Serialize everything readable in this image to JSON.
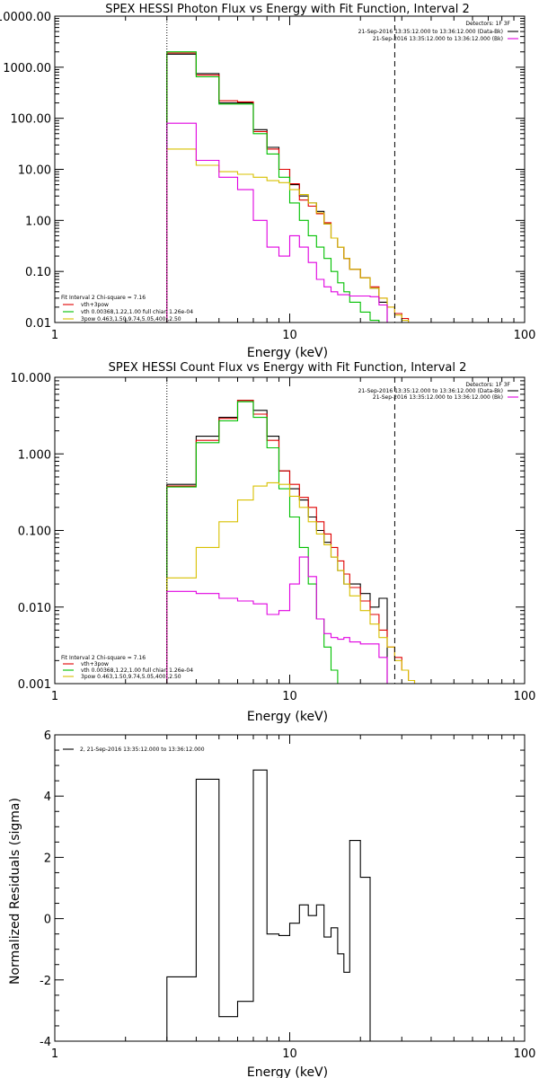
{
  "colors": {
    "data": "#000000",
    "total": "#e00000",
    "vth": "#00c000",
    "3pow": "#d8c000",
    "bk": "#e000e0"
  },
  "chart_data": [
    {
      "type": "line",
      "title": "SPEX HESSI Photon Flux vs Energy with Fit Function, Interval 2",
      "xlabel": "Energy (keV)",
      "ylabel": "",
      "xscale": "log",
      "yscale": "log",
      "xlim": [
        1,
        100
      ],
      "ylim": [
        0.01,
        10000
      ],
      "xticks": [
        1,
        10,
        100
      ],
      "xtick_labels": [
        "1",
        "10",
        "100"
      ],
      "yticks": [
        0.01,
        0.1,
        1,
        10,
        100,
        1000,
        10000
      ],
      "ytick_labels": [
        "0.01",
        "0.10",
        "1.00",
        "10.00",
        "100.00",
        "1000.00",
        "10000.00"
      ],
      "vlines": [
        {
          "x": 3,
          "style": "dotted"
        },
        {
          "x": 28,
          "style": "dashed"
        }
      ],
      "info": [
        "Detectors: 1F 3F",
        "21-Sep-2016 13:35:12.000 to 13:36:12.000 (Data-Bk)",
        "21-Sep-2016 13:35:12.000 to 13:36:12.000 (Bk)"
      ],
      "fit_text": [
        "Fit Interval 2   Chi-square = 7.16",
        "vth+3pow",
        "vth 0.00368,1.22,1.00  full chian 1.26e-04",
        "3pow 0.463,1.50,9.74,5.05,400.,2.50"
      ],
      "edges": [
        3,
        4,
        5,
        6,
        7,
        8,
        9,
        10,
        11,
        12,
        13,
        14,
        15,
        16,
        17,
        18,
        20,
        22,
        24,
        26,
        28,
        30,
        32,
        34,
        36
      ],
      "series": [
        {
          "name": "21-Sep-2016 13:35:12.000 to 13:36:12.000 (Data-Bk)",
          "color": "#000000",
          "values": [
            1800,
            750,
            200,
            200,
            60,
            27,
            10,
            5,
            3,
            2.2,
            1.5,
            0.85,
            0.45,
            0.3,
            0.18,
            0.11,
            0.075,
            0.047,
            0.025,
            null,
            null,
            null,
            null,
            null
          ]
        },
        {
          "name": "vth+3pow",
          "color": "#e00000",
          "values": [
            1900,
            700,
            220,
            210,
            55,
            25,
            10,
            5.2,
            2.5,
            1.9,
            1.35,
            0.9,
            0.45,
            0.3,
            0.18,
            0.11,
            0.075,
            0.05,
            0.03,
            0.02,
            0.015,
            0.012,
            0.01,
            null
          ]
        },
        {
          "name": "vth",
          "color": "#00c000",
          "values": [
            2000,
            650,
            190,
            190,
            50,
            20,
            7,
            2.2,
            1,
            0.5,
            0.3,
            0.18,
            0.1,
            0.06,
            0.04,
            0.025,
            0.016,
            0.011,
            null,
            null,
            null,
            null,
            null,
            null
          ]
        },
        {
          "name": "3pow",
          "color": "#d8c000",
          "values": [
            25,
            12,
            9,
            8,
            7,
            6,
            5.5,
            4,
            3.2,
            2.2,
            1.4,
            0.85,
            0.45,
            0.3,
            0.18,
            0.11,
            0.075,
            0.047,
            0.03,
            0.02,
            0.014,
            0.011,
            null,
            null
          ]
        },
        {
          "name": "21-Sep-2016 13:35:12.000 to 13:36:12.000 (Bk)",
          "color": "#e000e0",
          "values": [
            80,
            15,
            7,
            4,
            1,
            0.3,
            0.2,
            0.5,
            0.3,
            0.15,
            0.07,
            0.05,
            0.04,
            0.035,
            0.035,
            0.033,
            0.033,
            0.032,
            0.022,
            null,
            null,
            null,
            null,
            null
          ]
        }
      ]
    },
    {
      "type": "line",
      "title": "SPEX HESSI Count Flux vs Energy with Fit Function, Interval 2",
      "xlabel": "Energy (keV)",
      "ylabel": "",
      "xscale": "log",
      "yscale": "log",
      "xlim": [
        1,
        100
      ],
      "ylim": [
        0.001,
        10
      ],
      "xticks": [
        1,
        10,
        100
      ],
      "xtick_labels": [
        "1",
        "10",
        "100"
      ],
      "yticks": [
        0.001,
        0.01,
        0.1,
        1,
        10
      ],
      "ytick_labels": [
        "0.001",
        "0.010",
        "0.100",
        "1.000",
        "10.000"
      ],
      "vlines": [
        {
          "x": 3,
          "style": "dotted"
        },
        {
          "x": 28,
          "style": "dashed"
        }
      ],
      "info": [
        "Detectors: 1F 3F",
        "21-Sep-2016 13:35:12.000 to 13:36:12.000 (Data-Bk)",
        "21-Sep-2016 13:35:12.000 to 13:36:12.000 (Bk)"
      ],
      "fit_text": [
        "Fit Interval 2   Chi-square = 7.16",
        "vth+3pow",
        "vth 0.00368,1.22,1.00  full chian 1.26e-04",
        "3pow 0.463,1.50,9.74,5.05,400.,2.50"
      ],
      "edges": [
        3,
        4,
        5,
        6,
        7,
        8,
        9,
        10,
        11,
        12,
        13,
        14,
        15,
        16,
        17,
        18,
        20,
        22,
        24,
        26,
        28,
        30,
        32,
        34,
        36
      ],
      "series": [
        {
          "name": "21-Sep-2016 13:35:12.000 to 13:36:12.000 (Data-Bk)",
          "color": "#000000",
          "values": [
            0.4,
            1.7,
            3,
            5,
            3.7,
            1.7,
            0.6,
            0.35,
            0.25,
            0.15,
            0.1,
            0.07,
            0.045,
            0.03,
            0.02,
            0.02,
            0.015,
            0.01,
            0.013,
            null,
            null,
            null,
            null,
            null
          ]
        },
        {
          "name": "vth+3pow",
          "color": "#e00000",
          "values": [
            0.38,
            1.5,
            2.9,
            5,
            3.3,
            1.5,
            0.6,
            0.4,
            0.27,
            0.2,
            0.13,
            0.09,
            0.06,
            0.04,
            0.027,
            0.018,
            0.012,
            0.008,
            0.005,
            0.003,
            0.0022,
            0.0015,
            0.0011,
            null
          ]
        },
        {
          "name": "vth",
          "color": "#00c000",
          "values": [
            0.37,
            1.4,
            2.7,
            4.8,
            3,
            1.2,
            0.35,
            0.15,
            0.06,
            0.02,
            0.007,
            0.003,
            0.0015,
            null,
            null,
            null,
            null,
            null,
            null,
            null,
            null,
            null,
            null,
            null
          ]
        },
        {
          "name": "3pow",
          "color": "#d8c000",
          "values": [
            0.024,
            0.06,
            0.13,
            0.25,
            0.38,
            0.42,
            0.4,
            0.28,
            0.2,
            0.13,
            0.09,
            0.065,
            0.045,
            0.03,
            0.02,
            0.014,
            0.009,
            0.006,
            0.004,
            0.003,
            0.002,
            0.0015,
            0.0011,
            null
          ]
        },
        {
          "name": "21-Sep-2016 13:35:12.000 to 13:36:12.000 (Bk)",
          "color": "#e000e0",
          "values": [
            0.016,
            0.015,
            0.013,
            0.012,
            0.011,
            0.008,
            0.009,
            0.02,
            0.045,
            0.025,
            0.007,
            0.0045,
            0.004,
            0.0038,
            0.004,
            0.0035,
            0.0033,
            0.0033,
            0.0022,
            null,
            null,
            null,
            null,
            null
          ]
        }
      ]
    },
    {
      "type": "line",
      "title": "",
      "xlabel": "Energy (keV)",
      "ylabel": "Normalized Residuals (sigma)",
      "xscale": "log",
      "xlim": [
        1,
        100
      ],
      "ylim": [
        -4,
        6
      ],
      "xticks": [
        1,
        10,
        100
      ],
      "xtick_labels": [
        "1",
        "10",
        "100"
      ],
      "yticks": [
        -4,
        -2,
        0,
        2,
        4,
        6
      ],
      "ytick_labels": [
        "-4",
        "-2",
        "0",
        "2",
        "4",
        "6"
      ],
      "legend": [
        "2, 21-Sep-2016 13:35:12.000 to 13:36:12.000"
      ],
      "edges": [
        3,
        4,
        5,
        6,
        7,
        8,
        9,
        10,
        11,
        12,
        13,
        14,
        15,
        16,
        17,
        18,
        20,
        22,
        24,
        26,
        28
      ],
      "series": [
        {
          "name": "2, 21-Sep-2016 13:35:12.000 to 13:36:12.000",
          "color": "#000000",
          "values": [
            -1.9,
            4.55,
            -3.2,
            -2.7,
            4.85,
            -0.5,
            -0.55,
            -0.15,
            0.45,
            0.1,
            0.45,
            -0.6,
            -0.3,
            -1.15,
            -1.75,
            2.55,
            1.35,
            null,
            null,
            null
          ]
        }
      ]
    }
  ]
}
